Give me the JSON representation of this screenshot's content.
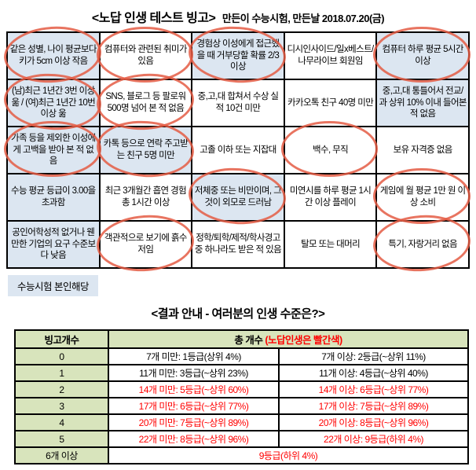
{
  "title": {
    "main": "<노답 인생 테스트 빙고>",
    "sub": "만든이 수능시험, 만든날 2018.07.20(금)"
  },
  "bingo": {
    "cells": [
      {
        "text": "같은 성별, 나이 평균보다 키가 5cm 이상 작음",
        "highlighted": true,
        "circled": true
      },
      {
        "text": "컴퓨터와 관련된 취미가 있음",
        "highlighted": false,
        "circled": true
      },
      {
        "text": "경험상 이성에게 접근했을 때 거부당할 확률 2/3 이상",
        "highlighted": true,
        "circled": true
      },
      {
        "text": "디시인사이드/일x베스트/나무라이브 회원임",
        "highlighted": false,
        "circled": false
      },
      {
        "text": "컴퓨터 하루 평균 5시간 이상",
        "highlighted": true,
        "circled": true
      },
      {
        "text": "(남)최근 1년간 3번 이상 욺 / (여)최근 1년간 10번 이상 욺",
        "highlighted": true,
        "circled": true
      },
      {
        "text": "SNS, 블로그 등 팔로워 500명 넘어 본 적 없음",
        "highlighted": false,
        "circled": true
      },
      {
        "text": "중,고,대 합쳐서 수상 실적 10건 미만",
        "highlighted": false,
        "circled": false
      },
      {
        "text": "카카오톡 친구 40명 미만",
        "highlighted": false,
        "circled": false
      },
      {
        "text": "중,고,대 통틀어서 전교/과 상위 10% 이내 들어본 적 없음",
        "highlighted": true,
        "circled": false
      },
      {
        "text": "가족 등을 제외한 이성에게 고백을 받아 본 적 없음",
        "highlighted": true,
        "circled": true
      },
      {
        "text": "카톡 등으로 연락 주고받는 친구 5명 미만",
        "highlighted": true,
        "circled": true
      },
      {
        "text": "고졸 이하 또는 지잡대",
        "highlighted": false,
        "circled": false
      },
      {
        "text": "백수, 무직",
        "highlighted": false,
        "circled": true
      },
      {
        "text": "보유 자격증 없음",
        "highlighted": false,
        "circled": false
      },
      {
        "text": "수능 평균 등급이 3.00을 초과함",
        "highlighted": true,
        "circled": false
      },
      {
        "text": "최근 3개월간 흡연 경험 총 1시간 이상",
        "highlighted": false,
        "circled": false
      },
      {
        "text": "저체중 또는 비만이며, 그것이 외모로 드러남",
        "highlighted": true,
        "circled": true
      },
      {
        "text": "미연시를 하루 평균 1시간 이상 플레이",
        "highlighted": false,
        "circled": false
      },
      {
        "text": "게임에 월 평균 1만 원 이상 소비",
        "highlighted": false,
        "circled": true
      },
      {
        "text": "공인어학성적 없거나 웬만한 기업의 요구 수준보다 낮음",
        "highlighted": true,
        "circled": false
      },
      {
        "text": "객관적으로 보기에 흙수저임",
        "highlighted": false,
        "circled": true
      },
      {
        "text": "정학/퇴학/제적/학사경고 중 하나라도 받은 적 있음",
        "highlighted": false,
        "circled": false
      },
      {
        "text": "탈모 또는 대머리",
        "highlighted": false,
        "circled": false
      },
      {
        "text": "특기, 자랑거리 없음",
        "highlighted": false,
        "circled": true
      }
    ]
  },
  "author_tag": "수능시험 본인해당",
  "result": {
    "subtitle": "<결과 안내 - 여러분의 인생 수준은?>",
    "header": {
      "col1": "빙고개수",
      "col2_black": "총 개수 ",
      "col2_red": "(노답인생은 빨간색)"
    },
    "rows": [
      {
        "label": "0",
        "left": "7개 미만: 1등급(상위 4%)",
        "right": "7개 이상: 2등급(~상위 11%)",
        "red": false
      },
      {
        "label": "1",
        "left": "11개 미만: 3등급(~상위 23%)",
        "right": "11개 이상: 4등급(~상위 40%)",
        "red": false
      },
      {
        "label": "2",
        "left": "14개 미만: 5등급(~상위 60%)",
        "right": "14개 이상: 6등급(~상위 77%)",
        "red": true
      },
      {
        "label": "3",
        "left": "17개 미만: 6등급(~상위 77%)",
        "right": "17개 이상: 7등급(~상위 89%)",
        "red": true
      },
      {
        "label": "4",
        "left": "20개 미만: 7등급(~상위 89%)",
        "right": "20개 이상: 8등급(~상위 96%)",
        "red": true
      },
      {
        "label": "5",
        "left": "22개 미만: 8등급(~상위 96%)",
        "right": "22개 이상: 9등급(하위 4%)",
        "red": true
      },
      {
        "label": "6개 이상",
        "span": "9등급(하위 4%)",
        "red": true
      }
    ]
  },
  "colors": {
    "highlight_blue": "#dce6f1",
    "header_green": "#d8e4bc",
    "annotation_red": "#e45c44",
    "alert_red": "#ff0000"
  }
}
